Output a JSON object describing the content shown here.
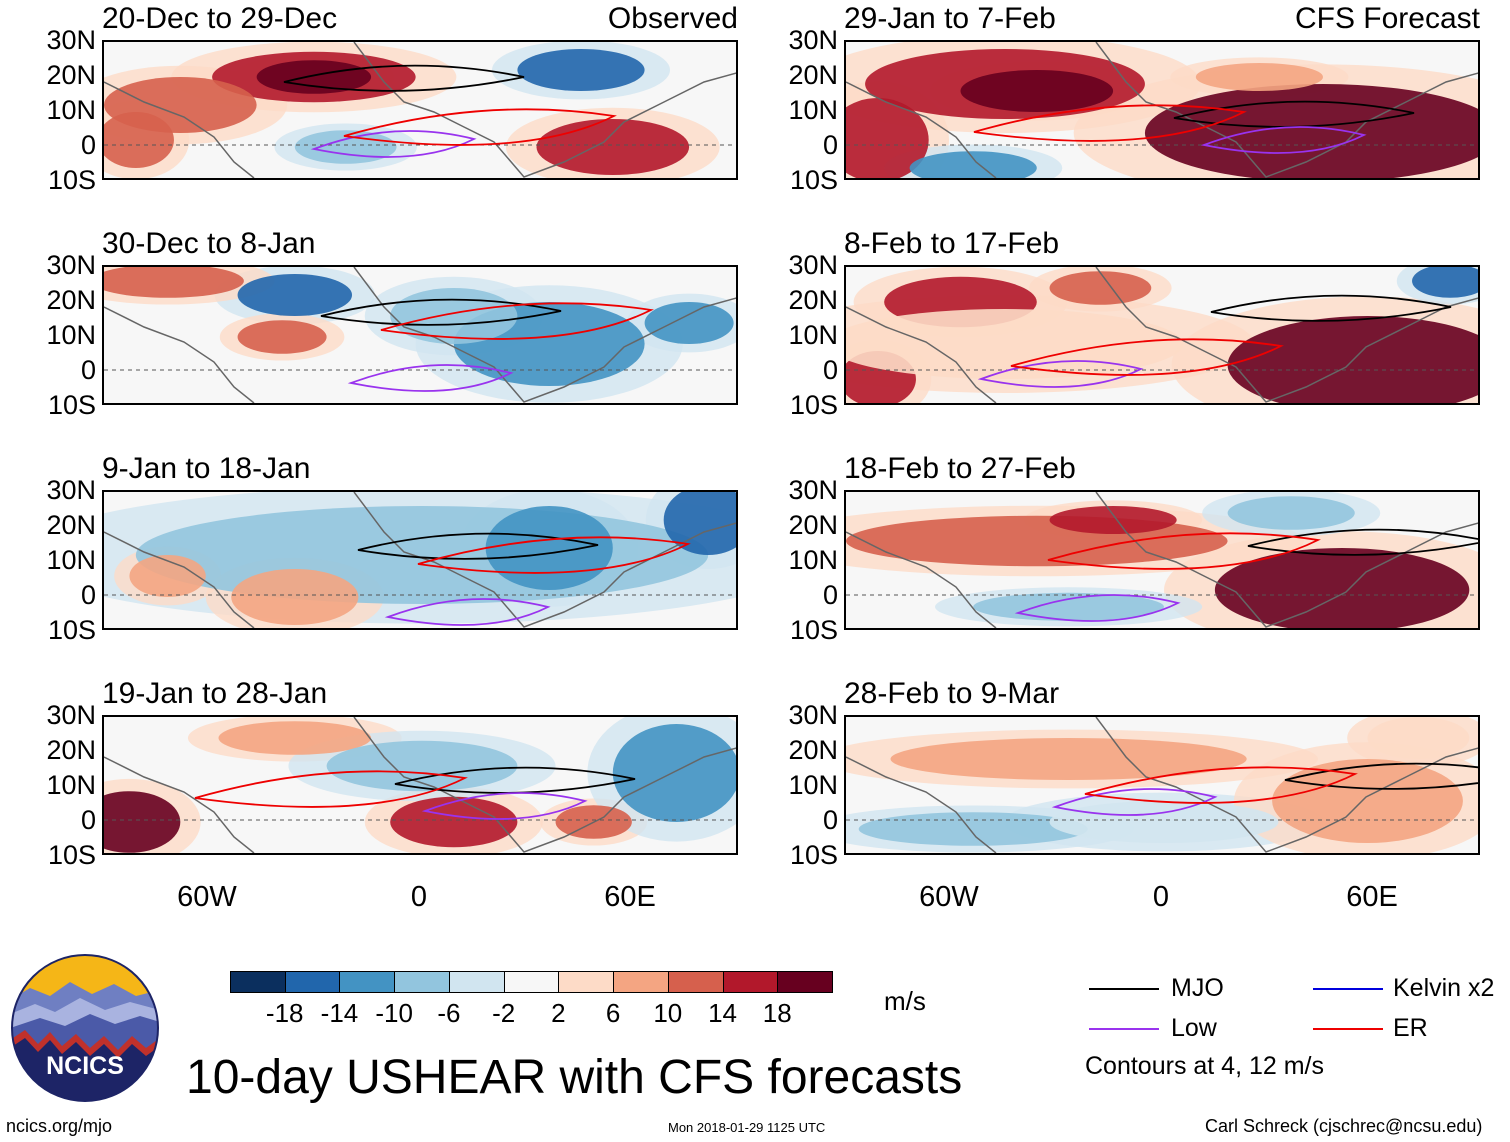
{
  "left_column_label": "Observed",
  "right_column_label": "CFS Forecast",
  "panels": [
    {
      "period": "20-Dec to 29-Dec"
    },
    {
      "period": "30-Dec to 8-Jan"
    },
    {
      "period": "9-Jan to 18-Jan"
    },
    {
      "period": "19-Jan to 28-Jan"
    },
    {
      "period": "29-Jan to 7-Feb"
    },
    {
      "period": "8-Feb to 17-Feb"
    },
    {
      "period": "18-Feb to 27-Feb"
    },
    {
      "period": "28-Feb to 9-Mar"
    }
  ],
  "lat_labels": [
    "30N",
    "20N",
    "10N",
    "0",
    "10S"
  ],
  "lon_labels": [
    "60W",
    "0",
    "60E"
  ],
  "colorbar": {
    "colors": [
      "#0b2f5e",
      "#2166ac",
      "#4393c3",
      "#92c5de",
      "#d1e5f0",
      "#f7f7f7",
      "#fddbc7",
      "#f4a582",
      "#d6604d",
      "#b2182b",
      "#67001f"
    ],
    "labels": [
      "-18",
      "-14",
      "-10",
      "-6",
      "-2",
      "2",
      "6",
      "10",
      "14",
      "18"
    ],
    "units": "m/s"
  },
  "legend": {
    "items": [
      {
        "label": "MJO",
        "color": "#000000"
      },
      {
        "label": "Kelvin x2",
        "color": "#0000dd"
      },
      {
        "label": "Low",
        "color": "#9933ee"
      },
      {
        "label": "ER",
        "color": "#ee0000"
      }
    ],
    "note": "Contours at 4, 12 m/s"
  },
  "logo": {
    "text": "NCICS"
  },
  "title": "10-day USHEAR with CFS forecasts",
  "footer": {
    "url": "ncics.org/mjo",
    "timestamp": "Mon 2018-01-29 1125 UTC",
    "author": "Carl Schreck (cjschrec@ncsu.edu)"
  }
}
